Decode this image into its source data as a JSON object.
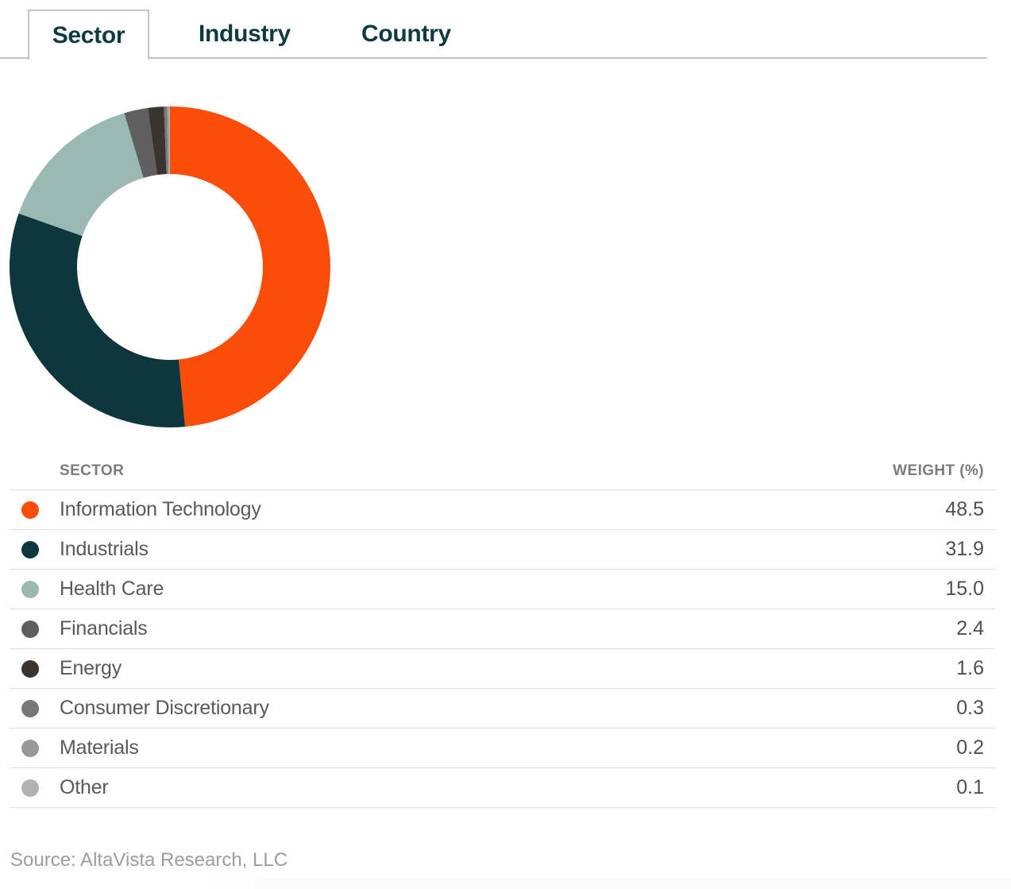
{
  "tabs": [
    {
      "label": "Sector",
      "active": true
    },
    {
      "label": "Industry",
      "active": false
    },
    {
      "label": "Country",
      "active": false
    }
  ],
  "chart_data": {
    "type": "pie",
    "subtype": "donut",
    "title": "",
    "categories": [
      "Information Technology",
      "Industrials",
      "Health Care",
      "Financials",
      "Energy",
      "Consumer Discretionary",
      "Materials",
      "Other"
    ],
    "values": [
      48.5,
      31.9,
      15.0,
      2.4,
      1.6,
      0.3,
      0.2,
      0.1
    ],
    "colors": [
      "#fa4d0a",
      "#0e363d",
      "#9ab9b3",
      "#5f5f5f",
      "#3a342f",
      "#787878",
      "#989898",
      "#b2b2b2"
    ],
    "start_angle_deg": 0,
    "direction": "clockwise",
    "inner_radius_ratio": 0.58,
    "legend_position": "table-below"
  },
  "table": {
    "columns": [
      "SECTOR",
      "WEIGHT (%)"
    ],
    "rows": [
      {
        "label": "Information Technology",
        "weight": "48.5",
        "color": "#fa4d0a"
      },
      {
        "label": "Industrials",
        "weight": "31.9",
        "color": "#0e363d"
      },
      {
        "label": "Health Care",
        "weight": "15.0",
        "color": "#9ab9b3"
      },
      {
        "label": "Financials",
        "weight": "2.4",
        "color": "#5f5f5f"
      },
      {
        "label": "Energy",
        "weight": "1.6",
        "color": "#3a342f"
      },
      {
        "label": "Consumer Discretionary",
        "weight": "0.3",
        "color": "#787878"
      },
      {
        "label": "Materials",
        "weight": "0.2",
        "color": "#989898"
      },
      {
        "label": "Other",
        "weight": "0.1",
        "color": "#b2b2b2"
      }
    ]
  },
  "source": "Source: AltaVista Research, LLC",
  "ui_colors": {
    "tab_text": "#0d3b41",
    "tab_border": "#c5c5c5",
    "header_text": "#7b7c7e",
    "row_text": "#58595b",
    "divider": "#dedede",
    "source_text": "#9b9da0"
  }
}
